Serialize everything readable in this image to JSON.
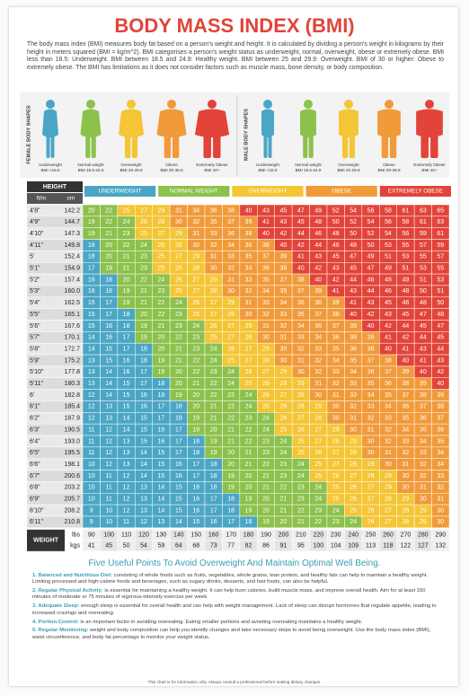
{
  "title": "BODY MASS INDEX (BMI)",
  "intro": "The body mass index (BMI) measures body fat based on a person's weight and height. It is calculated by dividing a person's weight in kilograms by their height in meters squared (BMI = kg/m^2). BMI categorises a person's weight status as underweight, normal, overweight, obese or extremely obese. BMI less than 18.5: Underweight. BMI between 18.5 and 24.9: Healthy weight. BMI between 25 and 29.9: Overweight. BMI of 30 or higher: Obese to extremely obese. The BMI has limitations as it does not consider factors such as muscle mass, bone density, or body composition.",
  "body_shapes": {
    "female_title": "FEMALE BODY SHAPES",
    "male_title": "MALE BODY SHAPES",
    "labels": [
      {
        "name": "Underweight",
        "range": "BMI <18.5"
      },
      {
        "name": "Normal weight",
        "range": "BMI 18.5-24.9"
      },
      {
        "name": "Overweight",
        "range": "BMI 25-29.9"
      },
      {
        "name": "Obese",
        "range": "BMI 30-39.9"
      },
      {
        "name": "Extremely Obese",
        "range": "BMI 40+"
      }
    ]
  },
  "bands": [
    {
      "label": "UNDERWEIGHT",
      "color": "#4ba6c6"
    },
    {
      "label": "NORMAL WEIGHT",
      "color": "#8cc14c",
      "from": 18.5
    },
    {
      "label": "OVERWEIGHT",
      "color": "#f4c534",
      "from": 25
    },
    {
      "label": "OBESE",
      "color": "#f19a3a",
      "from": 30
    },
    {
      "label": "EXTREMELY OBESE",
      "color": "#e2443a",
      "from": 40
    }
  ],
  "table": {
    "header": {
      "height": "HEIGHT",
      "ft_in": "ft/in",
      "cm": "cm"
    },
    "rows": [
      {
        "ft": "4'8\"",
        "cm": "142.2",
        "bmi": [
          20,
          22,
          25,
          27,
          29,
          31,
          34,
          36,
          38,
          40,
          43,
          45,
          47,
          49,
          52,
          54,
          56,
          58,
          61,
          63,
          65
        ]
      },
      {
        "ft": "4'9\"",
        "cm": "144.7",
        "bmi": [
          19,
          22,
          24,
          26,
          28,
          30,
          32,
          35,
          37,
          39,
          41,
          43,
          45,
          48,
          50,
          52,
          54,
          56,
          58,
          61,
          63
        ]
      },
      {
        "ft": "4'10\"",
        "cm": "147.3",
        "bmi": [
          19,
          21,
          23,
          25,
          27,
          29,
          31,
          33,
          36,
          38,
          40,
          42,
          44,
          46,
          48,
          50,
          52,
          54,
          56,
          59,
          61
        ]
      },
      {
        "ft": "4'11\"",
        "cm": "149.8",
        "bmi": [
          18,
          20,
          22,
          24,
          26,
          28,
          30,
          32,
          34,
          36,
          38,
          40,
          42,
          44,
          46,
          48,
          50,
          53,
          55,
          57,
          59
        ]
      },
      {
        "ft": "5'",
        "cm": "152.4",
        "bmi": [
          18,
          20,
          21,
          23,
          25,
          27,
          29,
          31,
          33,
          35,
          37,
          39,
          41,
          43,
          45,
          47,
          49,
          51,
          53,
          55,
          57
        ]
      },
      {
        "ft": "5'1\"",
        "cm": "154.9",
        "bmi": [
          17,
          19,
          21,
          23,
          25,
          26,
          28,
          30,
          32,
          34,
          36,
          38,
          40,
          42,
          43,
          45,
          47,
          49,
          51,
          53,
          55
        ]
      },
      {
        "ft": "5'2\"",
        "cm": "157.4",
        "bmi": [
          16,
          18,
          20,
          22,
          24,
          26,
          27,
          29,
          31,
          33,
          35,
          37,
          38,
          40,
          42,
          44,
          46,
          48,
          49,
          51,
          53
        ]
      },
      {
        "ft": "5'3\"",
        "cm": "160.0",
        "bmi": [
          16,
          18,
          19,
          21,
          23,
          25,
          27,
          28,
          30,
          32,
          34,
          35,
          37,
          39,
          41,
          43,
          44,
          46,
          48,
          50,
          51
        ]
      },
      {
        "ft": "5'4\"",
        "cm": "162.5",
        "bmi": [
          15,
          17,
          19,
          21,
          22,
          24,
          26,
          27,
          29,
          31,
          33,
          34,
          36,
          38,
          39,
          41,
          43,
          45,
          46,
          48,
          50
        ]
      },
      {
        "ft": "5'5\"",
        "cm": "165.1",
        "bmi": [
          15,
          17,
          18,
          20,
          22,
          23,
          25,
          27,
          28,
          30,
          32,
          33,
          35,
          37,
          38,
          40,
          42,
          43,
          45,
          47,
          48
        ]
      },
      {
        "ft": "5'6\"",
        "cm": "167.6",
        "bmi": [
          15,
          16,
          18,
          19,
          21,
          23,
          24,
          26,
          27,
          29,
          31,
          32,
          34,
          36,
          37,
          39,
          40,
          42,
          44,
          45,
          47
        ]
      },
      {
        "ft": "5'7\"",
        "cm": "170.1",
        "bmi": [
          14,
          16,
          17,
          19,
          20,
          22,
          23,
          25,
          27,
          28,
          30,
          31,
          33,
          34,
          36,
          38,
          39,
          41,
          42,
          44,
          45
        ]
      },
      {
        "ft": "5'8\"",
        "cm": "172.7",
        "bmi": [
          14,
          15,
          17,
          18,
          20,
          21,
          23,
          24,
          26,
          27,
          29,
          30,
          32,
          33,
          35,
          36,
          38,
          40,
          41,
          43,
          44
        ]
      },
      {
        "ft": "5'9\"",
        "cm": "175.2",
        "bmi": [
          13,
          15,
          16,
          18,
          19,
          21,
          22,
          24,
          25,
          27,
          28,
          30,
          31,
          32,
          34,
          35,
          37,
          38,
          40,
          41,
          43
        ]
      },
      {
        "ft": "5'10\"",
        "cm": "177.8",
        "bmi": [
          13,
          14,
          16,
          17,
          19,
          20,
          22,
          23,
          24,
          26,
          27,
          29,
          30,
          32,
          33,
          34,
          36,
          37,
          39,
          40,
          42
        ]
      },
      {
        "ft": "5'11\"",
        "cm": "180.3",
        "bmi": [
          13,
          14,
          15,
          17,
          18,
          20,
          21,
          22,
          24,
          25,
          26,
          28,
          29,
          31,
          32,
          33,
          35,
          36,
          38,
          39,
          40
        ]
      },
      {
        "ft": "6'",
        "cm": "182.8",
        "bmi": [
          12,
          14,
          15,
          16,
          18,
          19,
          20,
          22,
          23,
          24,
          26,
          27,
          28,
          30,
          31,
          33,
          34,
          35,
          37,
          38,
          39
        ]
      },
      {
        "ft": "6'1\"",
        "cm": "185.4",
        "bmi": [
          12,
          13,
          15,
          16,
          17,
          18,
          20,
          21,
          22,
          24,
          25,
          26,
          28,
          29,
          30,
          32,
          33,
          34,
          36,
          37,
          38
        ]
      },
      {
        "ft": "6'2\"",
        "cm": "187.9",
        "bmi": [
          12,
          13,
          14,
          15,
          17,
          18,
          19,
          21,
          22,
          23,
          24,
          26,
          27,
          28,
          30,
          31,
          32,
          33,
          35,
          36,
          37
        ]
      },
      {
        "ft": "6'3\"",
        "cm": "190.5",
        "bmi": [
          11,
          12,
          14,
          15,
          16,
          17,
          19,
          20,
          21,
          22,
          24,
          25,
          26,
          27,
          29,
          30,
          31,
          32,
          34,
          35,
          36
        ]
      },
      {
        "ft": "6'4\"",
        "cm": "193.0",
        "bmi": [
          11,
          12,
          13,
          15,
          16,
          17,
          18,
          19,
          21,
          22,
          23,
          24,
          26,
          27,
          28,
          29,
          30,
          32,
          33,
          34,
          35
        ]
      },
      {
        "ft": "6'5\"",
        "cm": "195.5",
        "bmi": [
          11,
          12,
          13,
          14,
          15,
          17,
          18,
          19,
          20,
          21,
          23,
          24,
          25,
          26,
          27,
          28,
          30,
          31,
          32,
          33,
          34
        ]
      },
      {
        "ft": "6'6\"",
        "cm": "198.1",
        "bmi": [
          10,
          12,
          13,
          14,
          15,
          16,
          17,
          18,
          20,
          21,
          22,
          23,
          24,
          25,
          27,
          28,
          29,
          30,
          31,
          32,
          34
        ]
      },
      {
        "ft": "6'7\"",
        "cm": "200.6",
        "bmi": [
          10,
          11,
          12,
          14,
          15,
          16,
          17,
          18,
          19,
          20,
          21,
          23,
          24,
          25,
          26,
          27,
          28,
          29,
          30,
          32,
          33
        ]
      },
      {
        "ft": "6'8\"",
        "cm": "203.2",
        "bmi": [
          10,
          11,
          12,
          13,
          14,
          15,
          16,
          18,
          19,
          20,
          21,
          22,
          23,
          24,
          25,
          26,
          27,
          29,
          30,
          31,
          32
        ]
      },
      {
        "ft": "6'9\"",
        "cm": "205.7",
        "bmi": [
          10,
          11,
          12,
          13,
          14,
          15,
          16,
          17,
          18,
          19,
          20,
          21,
          23,
          24,
          25,
          26,
          27,
          28,
          29,
          30,
          31
        ]
      },
      {
        "ft": "6'10\"",
        "cm": "208.2",
        "bmi": [
          9,
          10,
          12,
          13,
          14,
          15,
          16,
          17,
          18,
          19,
          20,
          21,
          22,
          23,
          24,
          25,
          26,
          27,
          28,
          29,
          30
        ]
      },
      {
        "ft": "6'11\"",
        "cm": "210.8",
        "bmi": [
          9,
          10,
          11,
          12,
          13,
          14,
          15,
          16,
          17,
          18,
          19,
          20,
          21,
          22,
          23,
          24,
          26,
          27,
          28,
          29,
          30
        ]
      }
    ],
    "weight": {
      "label": "WEIGHT",
      "lbs_label": "lbs",
      "kgs_label": "kgs",
      "lbs": [
        90,
        100,
        110,
        120,
        130,
        140,
        150,
        160,
        170,
        180,
        190,
        200,
        210,
        220,
        230,
        240,
        250,
        260,
        270,
        280,
        290
      ],
      "kgs": [
        41,
        45,
        50,
        54,
        59,
        64,
        68,
        73,
        77,
        82,
        86,
        91,
        95,
        100,
        104,
        109,
        113,
        118,
        122,
        127,
        132
      ]
    }
  },
  "tips": {
    "heading": "Five Useful Points To Avoid Overweight And Maintain Optimal Well Being.",
    "points": [
      {
        "label": "1. Balanced and Nutritious Diet:",
        "text": "consisting of whole foods such as fruits, vegetables, whole grains, lean protein, and healthy fats can help to maintain a healthy weight. Limiting processed and high-calorie foods and beverages, such as sugary drinks, desserts, and fast foods, can also be helpful."
      },
      {
        "label": "2. Regular Physical Activity:",
        "text": "is essential for maintaining a healthy weight. It can help burn calories, build muscle mass, and improve overall health. Aim for at least 150 minutes of moderate or 75 minutes of vigorous-intensity exercise per week."
      },
      {
        "label": "3. Adequate Sleep:",
        "text": "enough sleep is essential for overall health and can help with weight management. Lack of sleep can disrupt hormones that regulate appetite, leading to increased cravings and overeating."
      },
      {
        "label": "4. Portion Control:",
        "text": "is an important factor in avoiding overeating. Eating smaller portions and avoiding overeating maintains a healthy weight."
      },
      {
        "label": "5. Regular Monitoring:",
        "text": "weight and body composition can help you identify changes and take necessary steps to avoid being overweight. Use the body mass index (BMI), waist circumference, and body fat percentage to monitor your weight status."
      }
    ]
  },
  "footer": "This chart is for information only. Always consult a professional before making dietary changes."
}
